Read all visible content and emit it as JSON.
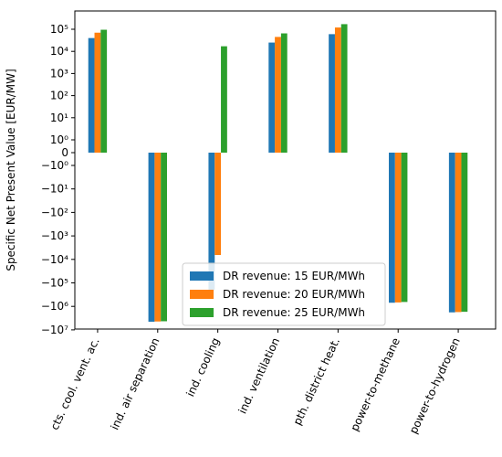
{
  "chart_data": {
    "type": "bar",
    "title": "",
    "xlabel": "",
    "ylabel": "Specific Net Present Value [EUR/MW]",
    "yscale": "symlog",
    "ylim": [
      -30000000,
      350000
    ],
    "grid": false,
    "legend_position": "lower-center",
    "categories": [
      "cts. cool. vent. ac.",
      "ind. air separation",
      "ind. cooling",
      "ind. ventilation",
      "pth. district heat.",
      "power-to-methane",
      "power-to-hydrogen"
    ],
    "series": [
      {
        "name": "DR revenue: 15 EUR/MWh",
        "color": "#1f77b4",
        "values": [
          40000,
          -4500000,
          -200000,
          25000,
          60000,
          -700000,
          -1800000
        ]
      },
      {
        "name": "DR revenue: 20 EUR/MWh",
        "color": "#ff7f0e",
        "values": [
          70000,
          -4400000,
          -6500,
          45000,
          120000,
          -680000,
          -1750000
        ]
      },
      {
        "name": "DR revenue: 25 EUR/MWh",
        "color": "#2ca02c",
        "values": [
          95000,
          -4300000,
          17000,
          65000,
          170000,
          -650000,
          -1700000
        ]
      }
    ],
    "yticks": {
      "values": [
        100000,
        10000,
        1000,
        100,
        10,
        1,
        0,
        -1,
        -10,
        -100,
        -1000,
        -10000,
        -100000,
        -1000000,
        -10000000
      ],
      "labels": [
        "10⁵",
        "10⁴",
        "10³",
        "10²",
        "10¹",
        "10⁰",
        "0",
        "−10⁰",
        "−10¹",
        "−10²",
        "−10³",
        "−10⁴",
        "−10⁵",
        "−10⁶",
        "−10⁷"
      ]
    }
  }
}
